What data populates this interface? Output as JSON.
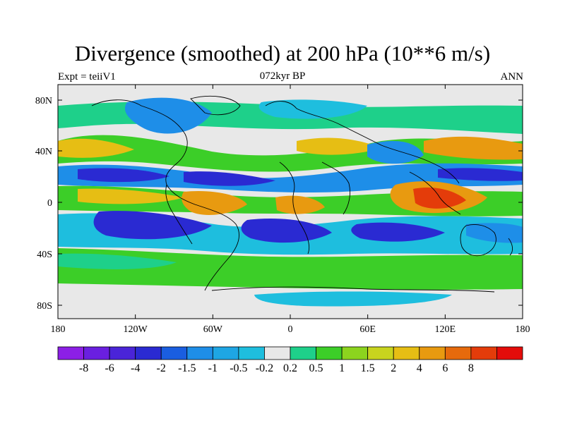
{
  "title": "Divergence (smoothed) at 200 hPa (10**6 m/s)",
  "subtitle_left": "Expt = teiiV1",
  "subtitle_center": "072kyr BP",
  "subtitle_right": "ANN",
  "lat_labels": [
    "80N",
    "40N",
    "0",
    "40S",
    "80S"
  ],
  "lon_labels": [
    "180",
    "120W",
    "60W",
    "0",
    "60E",
    "120E",
    "180"
  ],
  "colorbar": {
    "colors": [
      "#8c1fe6",
      "#6a1fe0",
      "#4a24d8",
      "#2a2ad2",
      "#1a5ee0",
      "#1e8ee8",
      "#1ea6e4",
      "#1ebede",
      "#e8e8e8",
      "#1ed08a",
      "#3cce28",
      "#8cd41e",
      "#c8d41e",
      "#e6be14",
      "#e89a10",
      "#e66a0c",
      "#e43c0a",
      "#e40c0a"
    ],
    "labels": [
      "-8",
      "-6",
      "-4",
      "-2",
      "-1.5",
      "-1",
      "-0.5",
      "-0.2",
      "0.2",
      "0.5",
      "1",
      "1.5",
      "2",
      "4",
      "6",
      "8"
    ]
  },
  "field_colors": {
    "background": "#e8e8e8",
    "pos_low": "#1ed08a",
    "pos_mid": "#3cce28",
    "pos_high": "#e6be14",
    "pos_max": "#e43c0a",
    "neg_low": "#1ebede",
    "neg_mid": "#1e8ee8",
    "neg_high": "#2a2ad2",
    "coast": "#000000"
  }
}
